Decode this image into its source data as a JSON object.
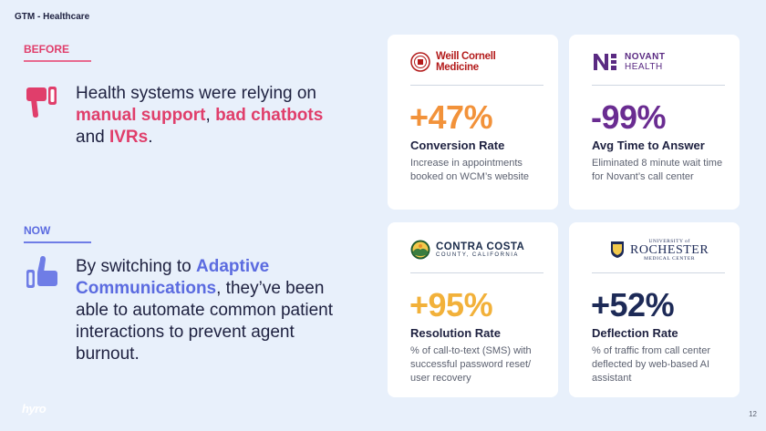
{
  "header": {
    "title": "GTM - Healthcare"
  },
  "before": {
    "tag": "BEFORE",
    "text_pre": "Health systems were relying on ",
    "hl1": "manual support",
    "sep1": ", ",
    "hl2": "bad chatbots",
    "sep2": " and ",
    "hl3": "IVRs",
    "text_post": "."
  },
  "now": {
    "tag": "NOW",
    "text_pre": "By switching to ",
    "hl1": "Adaptive Communications",
    "text_post": ", they’ve been able to automate common patient interactions to prevent agent burnout."
  },
  "cards": [
    {
      "logo_lines": [
        "Weill Cornell",
        "Medicine"
      ],
      "stat": "+47%",
      "metric": "Conversion Rate",
      "desc": "Increase in appointments booked on WCM’s website"
    },
    {
      "logo_lines": [
        "NOVANT",
        "HEALTH"
      ],
      "stat": "-99%",
      "metric": "Avg Time to Answer",
      "desc": "Eliminated 8 minute wait time for Novant’s call center"
    },
    {
      "logo_lines": [
        "CONTRA COSTA",
        "COUNTY, CALIFORNIA"
      ],
      "stat": "+95%",
      "metric": "Resolution Rate",
      "desc": "% of call-to-text (SMS) with successful password reset/ user recovery"
    },
    {
      "logo_lines": [
        "UNIVERSITY of",
        "ROCHESTER",
        "MEDICAL CENTER"
      ],
      "stat": "+52%",
      "metric": "Deflection Rate",
      "desc": "% of traffic from call center deflected by web-based AI assistant"
    }
  ],
  "footer": {
    "brand": "hyro",
    "page_number": "12"
  },
  "colors": {
    "background": "#e8f0fb",
    "pink": "#e03e6b",
    "blue": "#5b6be0",
    "orange": "#f2923a",
    "purple": "#6a2c91",
    "gold": "#f2b13a",
    "navy": "#1d2a57"
  },
  "icons": [
    "thumbs-down-icon",
    "thumbs-up-icon",
    "weill-cornell-logo",
    "novant-logo",
    "contra-costa-logo",
    "rochester-logo"
  ]
}
